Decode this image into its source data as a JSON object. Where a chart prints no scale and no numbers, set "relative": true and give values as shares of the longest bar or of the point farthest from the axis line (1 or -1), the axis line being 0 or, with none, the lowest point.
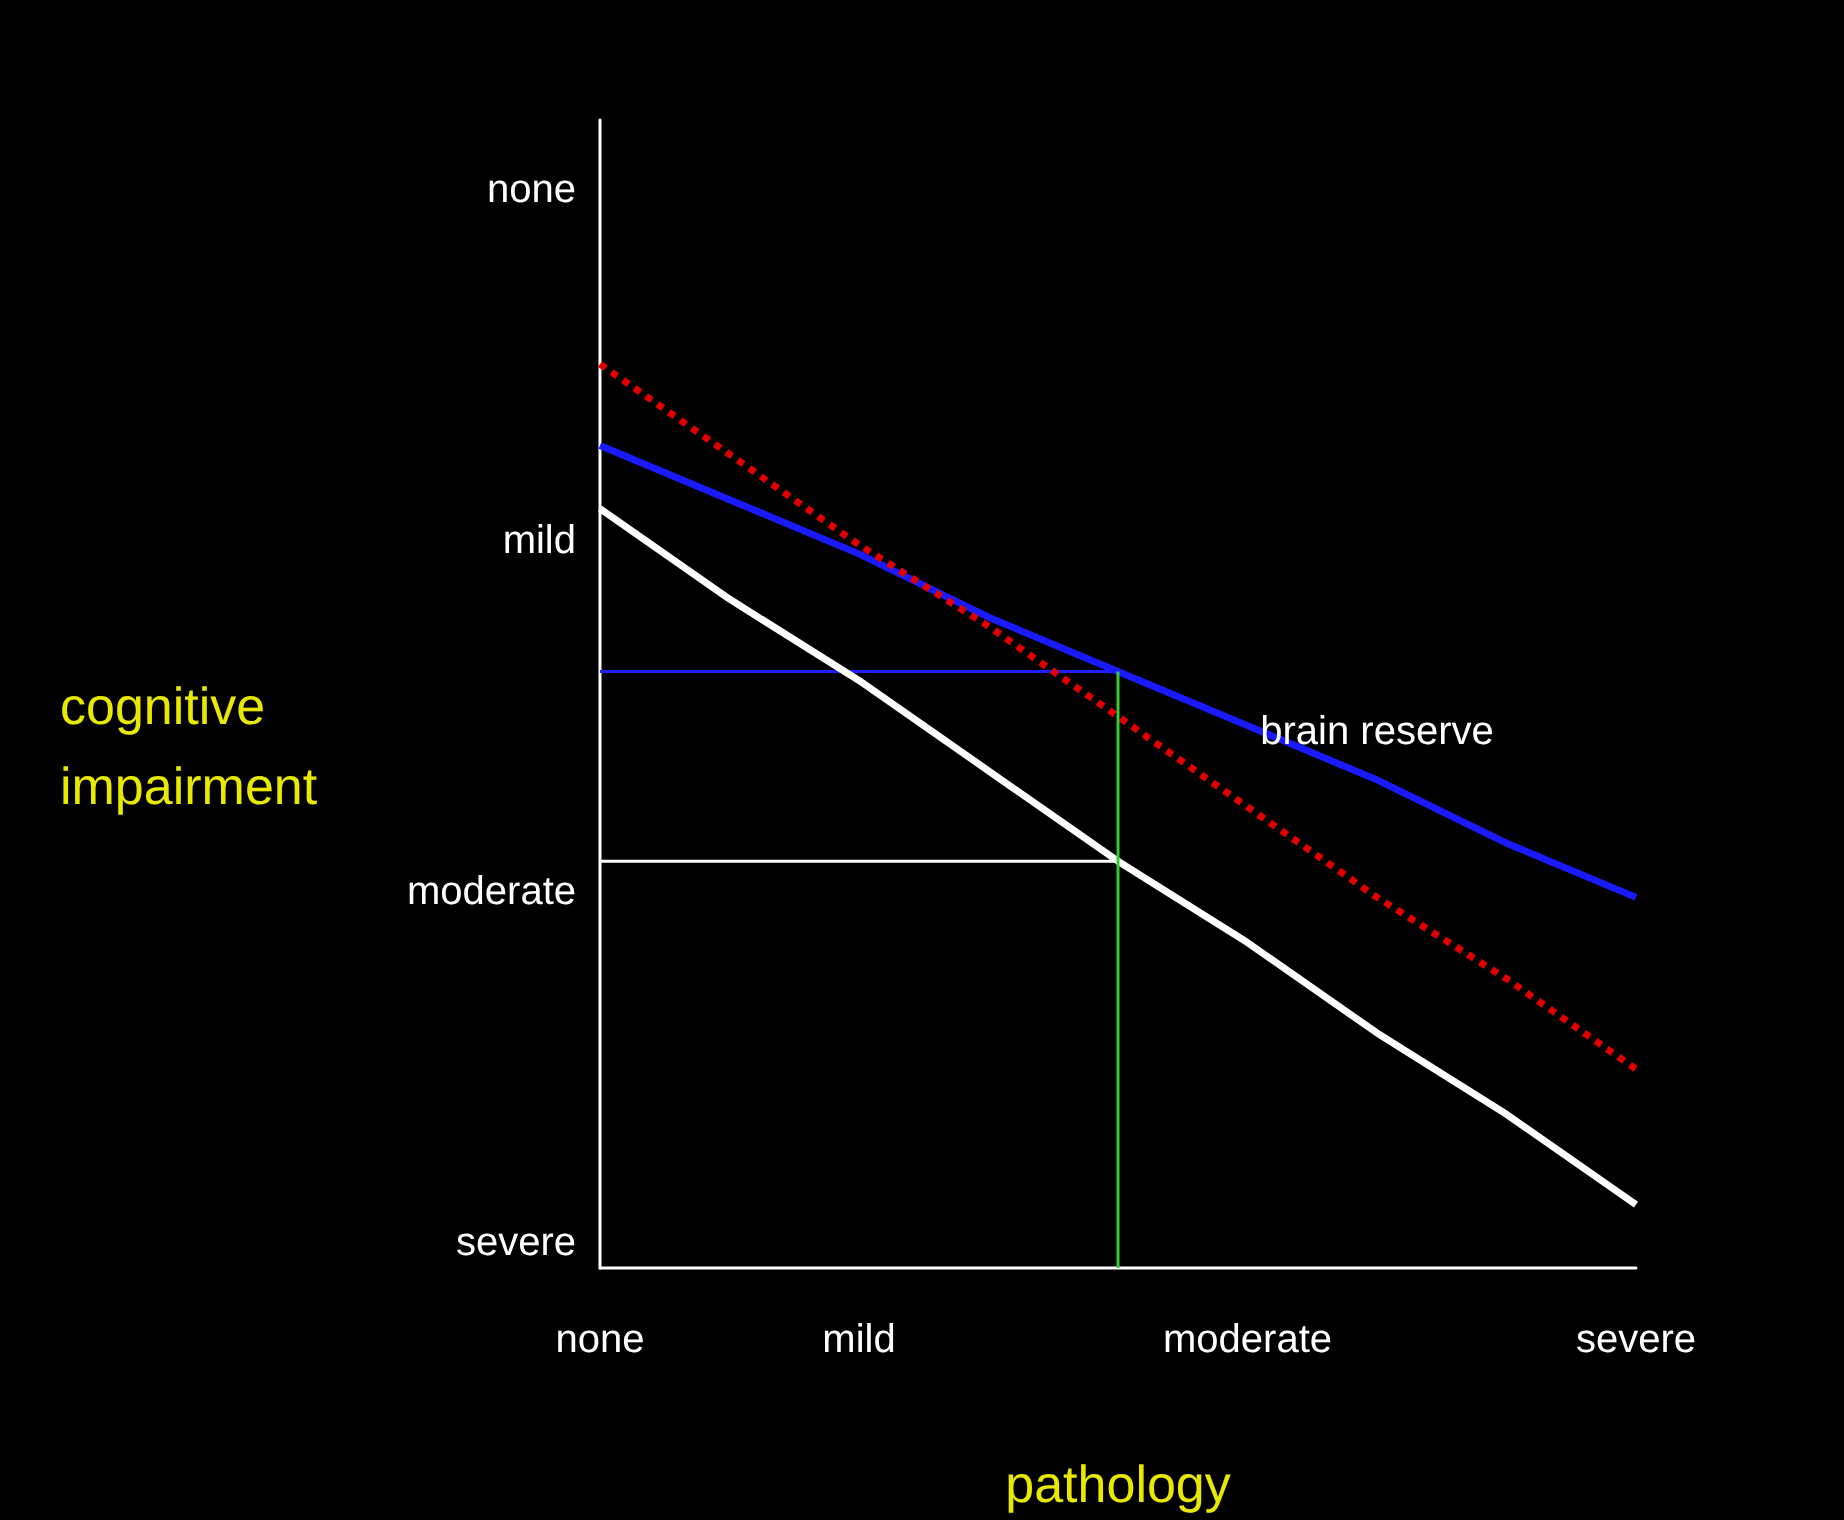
{
  "chart_data": {
    "type": "line",
    "xlabel": "pathology",
    "ylabel": "cognitive impairment",
    "relative": true,
    "categories": [
      "none",
      null,
      "mild",
      null,
      null,
      "moderate",
      null,
      null,
      "severe"
    ],
    "grid": false,
    "marker": "none",
    "series": [
      {
        "color": "#ffffff",
        "values": [
          0.84,
          0.74,
          0.65,
          0.55,
          0.45,
          0.36,
          0.26,
          0.17,
          0.07
        ],
        "line_style": "solid"
      },
      {
        "name": "brain reserve",
        "color": "#1a1aff",
        "values": [
          0.91,
          0.85,
          0.79,
          0.72,
          0.66,
          0.6,
          0.54,
          0.47,
          0.41
        ],
        "line_style": "solid"
      },
      {
        "color": "#e00000",
        "values": [
          1.0,
          0.9,
          0.8,
          0.71,
          0.61,
          0.51,
          0.41,
          0.32,
          0.22
        ],
        "line_style": "dotted"
      },
      {
        "color": "#2020ff",
        "values": [
          0.66,
          0.66,
          0.66,
          0.66,
          0.66,
          null,
          null,
          null,
          null
        ],
        "line_style": "solid"
      },
      {
        "color": "#ffffff",
        "values": [
          0.45,
          0.45,
          0.45,
          0.45,
          0.45,
          null,
          null,
          null,
          null
        ],
        "line_style": "solid"
      }
    ],
    "annotations": [
      "none",
      "mild",
      "moderate",
      "severe"
    ]
  }
}
